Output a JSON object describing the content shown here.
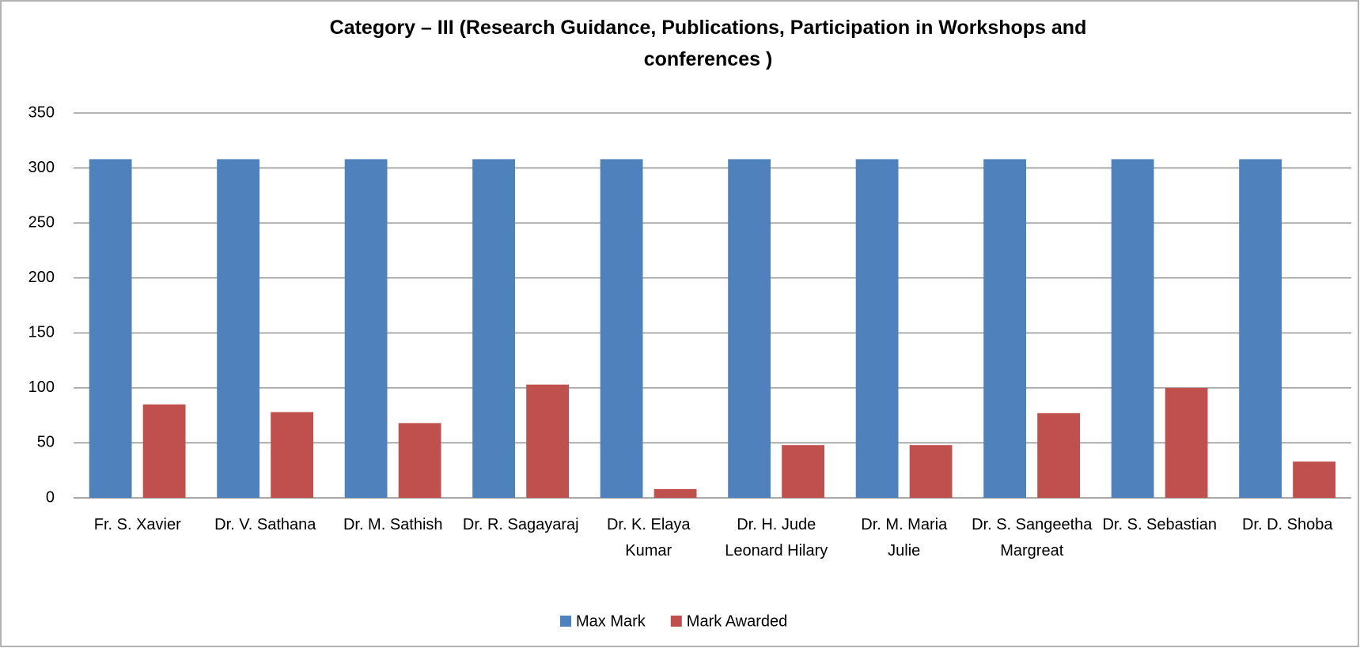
{
  "chart_data": {
    "type": "bar",
    "title": "Category – III (Research  Guidance, Publications, Participation in Workshops and conferences )",
    "categories": [
      "Fr. S. Xavier",
      "Dr. V. Sathana",
      "Dr. M. Sathish",
      "Dr. R. Sagayaraj",
      "Dr. K. Elaya Kumar",
      "Dr. H. Jude Leonard Hilary",
      "Dr. M. Maria Julie",
      "Dr. S. Sangeetha Margreat",
      "Dr. S. Sebastian",
      "Dr. D. Shoba"
    ],
    "series": [
      {
        "name": "Max Mark",
        "color": "#4f81bd",
        "values": [
          308,
          308,
          308,
          308,
          308,
          308,
          308,
          308,
          308,
          308
        ]
      },
      {
        "name": "Mark Awarded",
        "color": "#c0504d",
        "values": [
          85,
          78,
          68,
          103,
          8,
          48,
          48,
          77,
          100,
          33
        ]
      }
    ],
    "ylim": [
      0,
      350
    ],
    "yticks": [
      0,
      50,
      100,
      150,
      200,
      250,
      300,
      350
    ],
    "grid": true,
    "legend": "bottom"
  }
}
